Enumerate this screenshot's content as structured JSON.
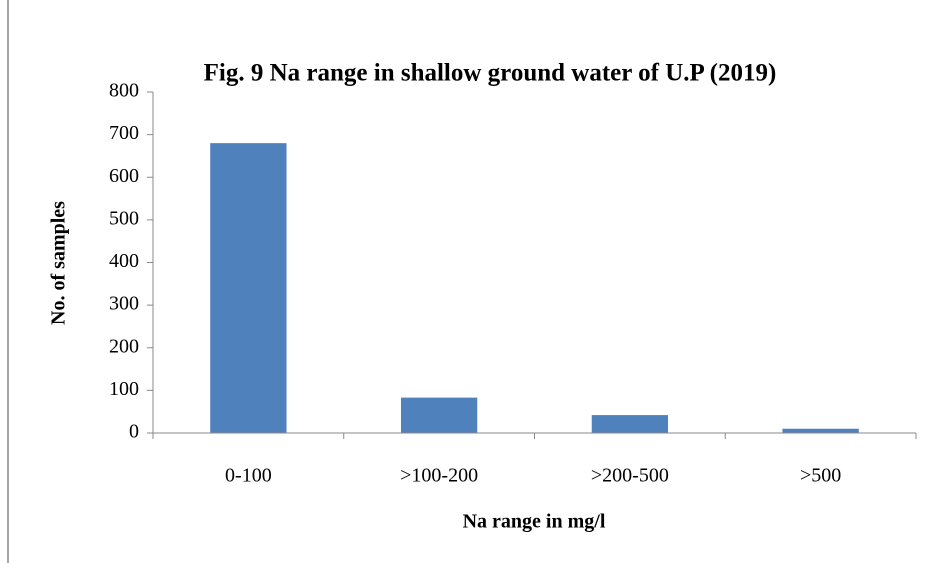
{
  "chart_data": {
    "type": "bar",
    "title": "Fig. 9 Na range in shallow ground water of U.P (2019)",
    "x_label": "Na range in mg/l",
    "y_label": "No. of samples",
    "categories": [
      "0-100",
      ">100-200",
      ">200-500",
      ">500"
    ],
    "values": [
      680,
      83,
      42,
      10
    ],
    "color": "#4f81bd",
    "ylim": [
      0,
      800
    ],
    "yticks": [
      0,
      100,
      200,
      300,
      400,
      500,
      600,
      700,
      800
    ],
    "grid": false
  }
}
